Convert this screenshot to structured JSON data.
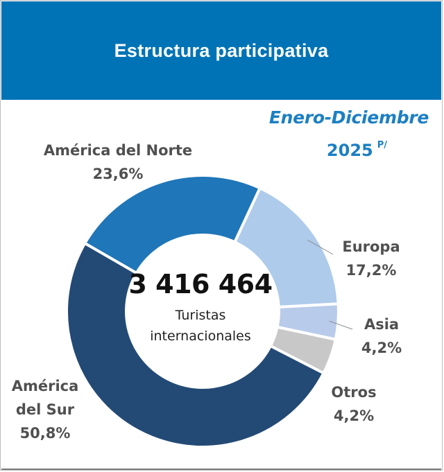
{
  "header": {
    "title": "Estructura participativa"
  },
  "period": {
    "line1": "Enero-Diciembre",
    "year": "2025",
    "note": "P/"
  },
  "center": {
    "total": "3 416 464",
    "unit_line1": "Turistas",
    "unit_line2": "internacionales"
  },
  "colors": {
    "header_bg": "#0073b6",
    "period_text": "#1c7fc2",
    "america_sur": "#234a75",
    "america_norte": "#1f76b8",
    "europa": "#aecbeb",
    "asia": "#b9cbea",
    "otros": "#c8c8c8"
  },
  "chart_data": {
    "type": "donut",
    "title": "Estructura participativa",
    "subtitle": "Enero-Diciembre 2025 P/",
    "total": 3416464,
    "slices": [
      {
        "name": "América del Norte",
        "label_lines": [
          "América del Norte"
        ],
        "pct_text": "23,6%",
        "value": 23.6,
        "color": "#1f76b8"
      },
      {
        "name": "Europa",
        "label_lines": [
          "Europa"
        ],
        "pct_text": "17,2%",
        "value": 17.2,
        "color": "#aecbeb"
      },
      {
        "name": "Asia",
        "label_lines": [
          "Asia"
        ],
        "pct_text": "4,2%",
        "value": 4.2,
        "color": "#b9cbea"
      },
      {
        "name": "Otros",
        "label_lines": [
          "Otros"
        ],
        "pct_text": "4,2%",
        "value": 4.2,
        "color": "#c8c8c8"
      },
      {
        "name": "América del Sur",
        "label_lines": [
          "América",
          "del Sur"
        ],
        "pct_text": "50,8%",
        "value": 50.8,
        "color": "#234a75"
      }
    ]
  }
}
